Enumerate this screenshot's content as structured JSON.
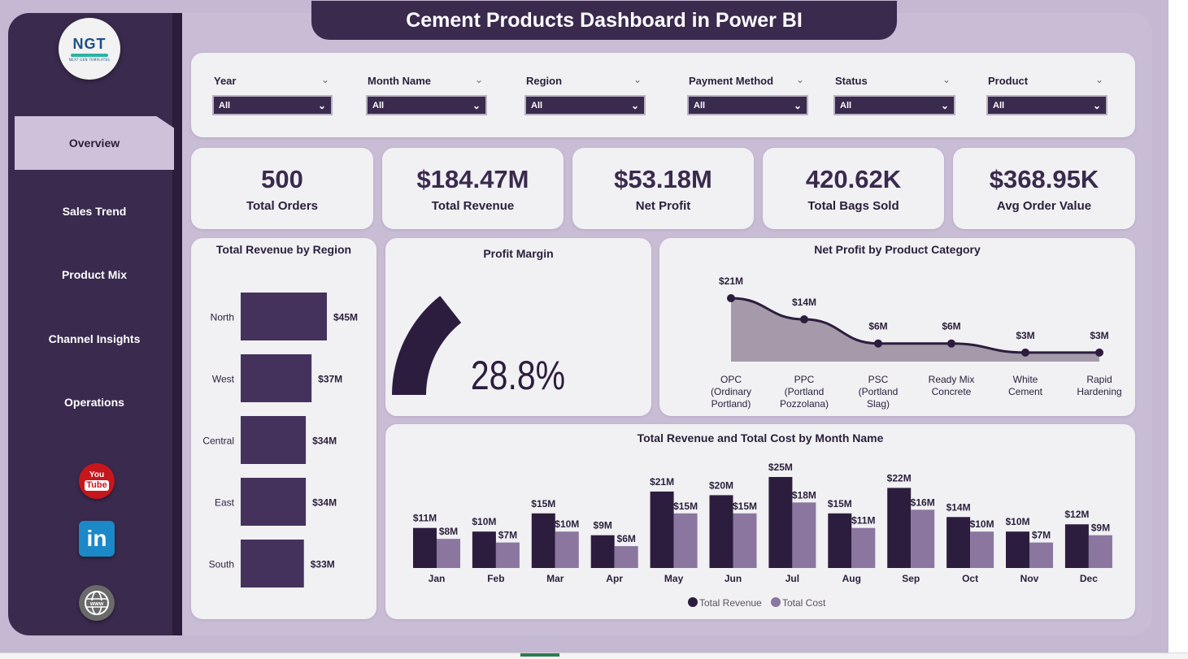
{
  "app": {
    "title": "Cement Products Dashboard in Power BI",
    "logo": {
      "text": "NGT",
      "subtext": "NEXT GEN TEMPLATES"
    }
  },
  "sidebar": {
    "items": [
      {
        "label": "Overview",
        "active": true
      },
      {
        "label": "Sales Trend",
        "active": false
      },
      {
        "label": "Product Mix",
        "active": false
      },
      {
        "label": "Channel Insights",
        "active": false
      },
      {
        "label": "Operations",
        "active": false
      }
    ],
    "social": {
      "youtube": {
        "icon": "youtube-icon",
        "text_top": "You",
        "text_bottom": "Tube"
      },
      "linkedin": {
        "icon": "linkedin-icon",
        "text": "in"
      },
      "website": {
        "icon": "globe-icon",
        "text": "www"
      }
    }
  },
  "filters": [
    {
      "label": "Year",
      "value": "All"
    },
    {
      "label": "Month Name",
      "value": "All"
    },
    {
      "label": "Region",
      "value": "All"
    },
    {
      "label": "Payment Method",
      "value": "All"
    },
    {
      "label": "Status",
      "value": "All"
    },
    {
      "label": "Product",
      "value": "All"
    }
  ],
  "kpis": [
    {
      "value": "500",
      "label": "Total Orders"
    },
    {
      "value": "$184.47M",
      "label": "Total Revenue"
    },
    {
      "value": "$53.18M",
      "label": "Net Profit"
    },
    {
      "value": "420.62K",
      "label": "Total Bags Sold"
    },
    {
      "value": "$368.95K",
      "label": "Avg Order Value"
    }
  ],
  "panels": {
    "region": {
      "title": "Total Revenue by Region"
    },
    "margin": {
      "title": "Profit Margin",
      "value": "28.8%"
    },
    "category": {
      "title": "Net Profit by Product Category"
    },
    "monthly": {
      "title": "Total Revenue and Total Cost by Month Name"
    }
  },
  "colors": {
    "dark": "#3a2a4e",
    "bar": "#45325c",
    "cost": "#8b76a0",
    "area": "#a49aaa",
    "line": "#2c1d3e",
    "canvas": "#c9bdd6"
  },
  "chart_data": [
    {
      "id": "region",
      "type": "bar",
      "orientation": "horizontal",
      "title": "Total Revenue by Region",
      "categories": [
        "North",
        "West",
        "Central",
        "East",
        "South"
      ],
      "values": [
        45,
        37,
        34,
        34,
        33
      ],
      "labels": [
        "$45M",
        "$37M",
        "$34M",
        "$34M",
        "$33M"
      ],
      "unit": "$M",
      "xlim": [
        0,
        45
      ]
    },
    {
      "id": "margin",
      "type": "gauge",
      "title": "Profit Margin",
      "value": 28.8,
      "max": 100,
      "label": "28.8%"
    },
    {
      "id": "category",
      "type": "area",
      "title": "Net Profit by Product Category",
      "categories": [
        [
          "OPC",
          "(Ordinary",
          "Portland)"
        ],
        [
          "PPC",
          "(Portland",
          "Pozzolana)"
        ],
        [
          "PSC",
          "(Portland",
          "Slag)"
        ],
        [
          "Ready Mix",
          "Concrete"
        ],
        [
          "White",
          "Cement"
        ],
        [
          "Rapid",
          "Hardening"
        ]
      ],
      "values": [
        21,
        14,
        6,
        6,
        3,
        3
      ],
      "labels": [
        "$21M",
        "$14M",
        "$6M",
        "$6M",
        "$3M",
        "$3M"
      ],
      "unit": "$M",
      "ylim": [
        0,
        21
      ]
    },
    {
      "id": "monthly",
      "type": "bar",
      "title": "Total Revenue and Total Cost by Month Name",
      "categories": [
        "Jan",
        "Feb",
        "Mar",
        "Apr",
        "May",
        "Jun",
        "Jul",
        "Aug",
        "Sep",
        "Oct",
        "Nov",
        "Dec"
      ],
      "series": [
        {
          "name": "Total Revenue",
          "values": [
            11,
            10,
            15,
            9,
            21,
            20,
            25,
            15,
            22,
            14,
            10,
            12
          ],
          "labels": [
            "$11M",
            "$10M",
            "$15M",
            "$9M",
            "$21M",
            "$20M",
            "$25M",
            "$15M",
            "$22M",
            "$14M",
            "$10M",
            "$12M"
          ]
        },
        {
          "name": "Total Cost",
          "values": [
            8,
            7,
            10,
            6,
            15,
            15,
            18,
            11,
            16,
            10,
            7,
            9
          ],
          "labels": [
            "$8M",
            "$7M",
            "$10M",
            "$6M",
            "$15M",
            "$15M",
            "$18M",
            "$11M",
            "$16M",
            "$10M",
            "$7M",
            "$9M"
          ]
        }
      ],
      "unit": "$M",
      "ylim": [
        0,
        25
      ],
      "legend": "bottom"
    }
  ]
}
